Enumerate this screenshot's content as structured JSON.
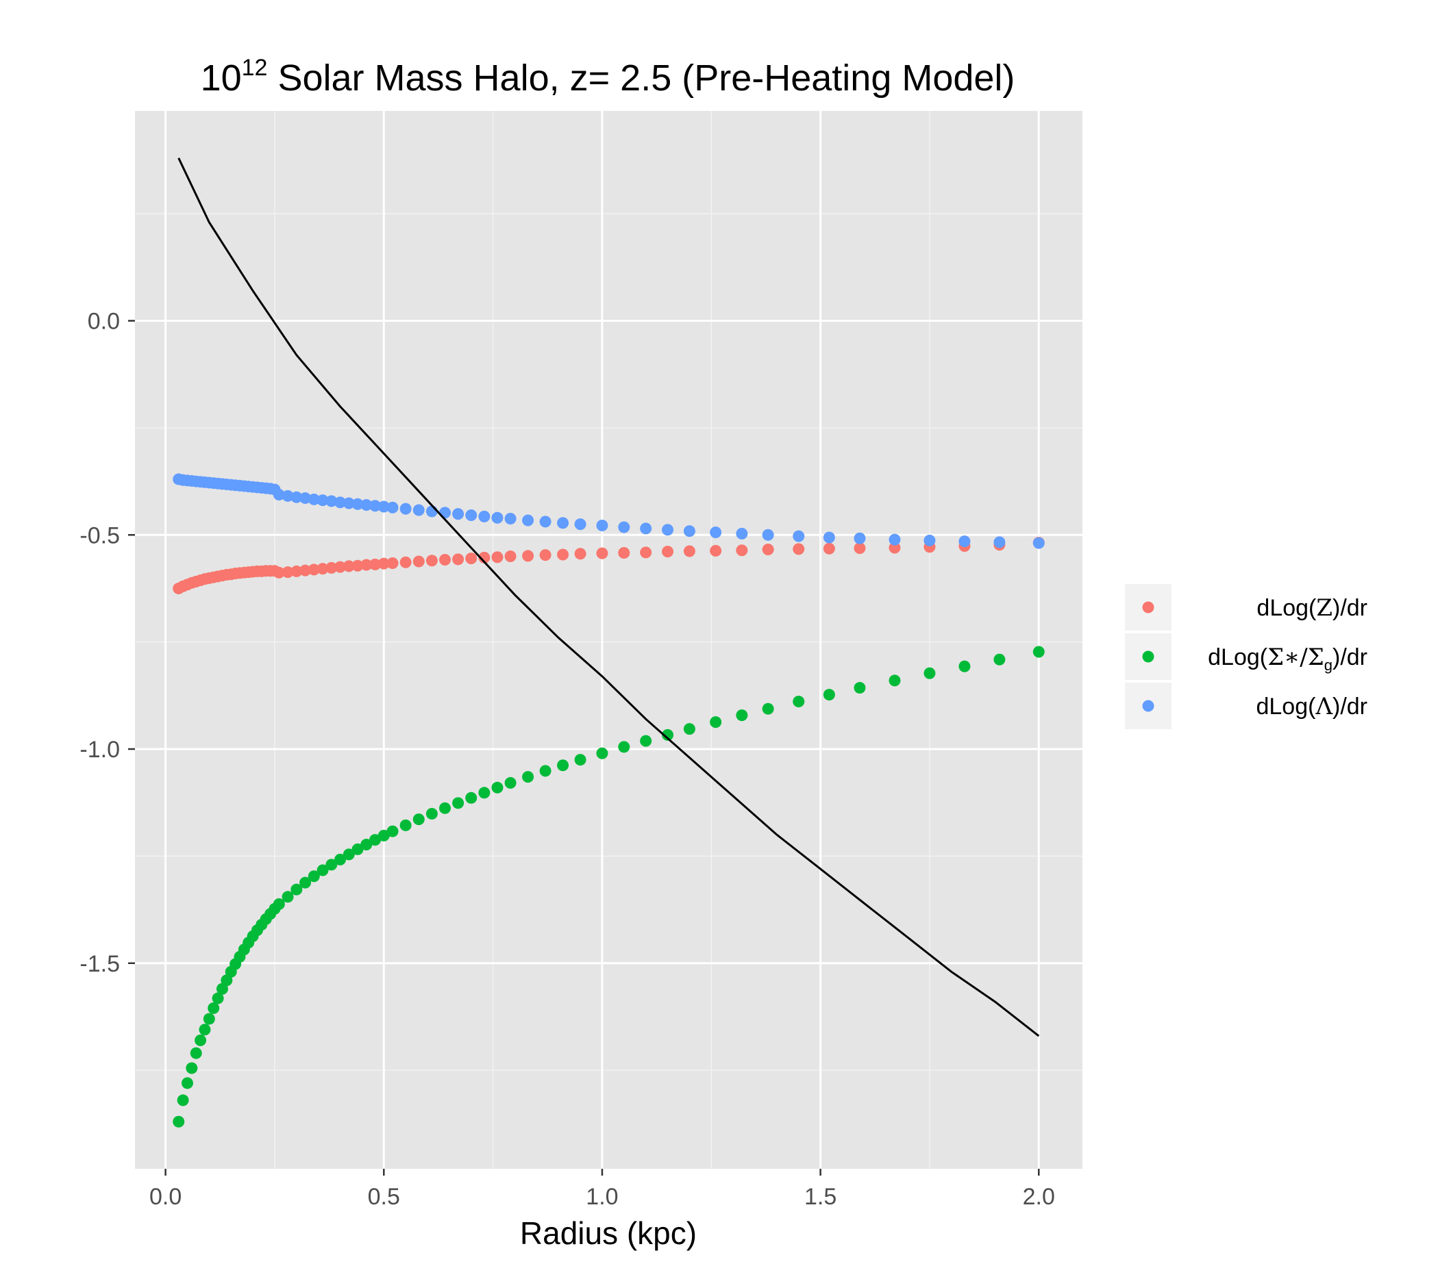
{
  "chart_data": {
    "type": "scatter",
    "title": {
      "base": "10",
      "superscript": "12",
      "rest": " Solar Mass Halo, z= 2.5 (Pre-Heating Model)"
    },
    "xlabel": "Radius (kpc)",
    "ylabel": "",
    "xlim": [
      -0.07,
      2.1
    ],
    "ylim": [
      -1.98,
      0.49
    ],
    "x_ticks": [
      0.0,
      0.5,
      1.0,
      1.5,
      2.0
    ],
    "x_tick_labels": [
      "0.0",
      "0.5",
      "1.0",
      "1.5",
      "2.0"
    ],
    "y_ticks": [
      0.0,
      -0.5,
      -1.0,
      -1.5
    ],
    "y_tick_labels": [
      "0.0",
      "-0.5",
      "-1.0",
      "-1.5"
    ],
    "grid": true,
    "panel_background": "#e5e5e5",
    "legend_position": "right",
    "series": [
      {
        "key": "Z",
        "legend_label": {
          "pre": "dLog(",
          "sym": "Z",
          "post": ")/dr"
        },
        "color": "#f8766d",
        "type": "points",
        "x": [
          0.03,
          0.04,
          0.05,
          0.06,
          0.07,
          0.08,
          0.09,
          0.1,
          0.11,
          0.12,
          0.13,
          0.14,
          0.15,
          0.16,
          0.17,
          0.18,
          0.19,
          0.2,
          0.21,
          0.22,
          0.23,
          0.24,
          0.25,
          0.26,
          0.28,
          0.3,
          0.32,
          0.34,
          0.36,
          0.38,
          0.4,
          0.42,
          0.44,
          0.46,
          0.48,
          0.5,
          0.52,
          0.55,
          0.58,
          0.61,
          0.64,
          0.67,
          0.7,
          0.73,
          0.76,
          0.79,
          0.83,
          0.87,
          0.91,
          0.95,
          1.0,
          1.05,
          1.1,
          1.15,
          1.2,
          1.26,
          1.32,
          1.38,
          1.45,
          1.52,
          1.59,
          1.67,
          1.75,
          1.83,
          1.91,
          2.0
        ],
        "y": [
          -0.625,
          -0.62,
          -0.616,
          -0.612,
          -0.609,
          -0.606,
          -0.603,
          -0.601,
          -0.599,
          -0.597,
          -0.595,
          -0.593,
          -0.592,
          -0.59,
          -0.589,
          -0.588,
          -0.587,
          -0.586,
          -0.585,
          -0.585,
          -0.584,
          -0.584,
          -0.584,
          -0.588,
          -0.587,
          -0.585,
          -0.583,
          -0.581,
          -0.579,
          -0.577,
          -0.575,
          -0.573,
          -0.572,
          -0.57,
          -0.569,
          -0.567,
          -0.566,
          -0.564,
          -0.562,
          -0.56,
          -0.558,
          -0.557,
          -0.555,
          -0.553,
          -0.552,
          -0.55,
          -0.549,
          -0.547,
          -0.546,
          -0.544,
          -0.543,
          -0.542,
          -0.541,
          -0.539,
          -0.538,
          -0.537,
          -0.536,
          -0.534,
          -0.533,
          -0.532,
          -0.531,
          -0.53,
          -0.528,
          -0.526,
          -0.523,
          -0.518
        ]
      },
      {
        "key": "sigma",
        "legend_label": {
          "pre": "dLog(",
          "sym": "Σ∗/Σg",
          "post": ")/dr"
        },
        "color": "#00ba38",
        "type": "points",
        "x": [
          0.03,
          0.04,
          0.05,
          0.06,
          0.07,
          0.08,
          0.09,
          0.1,
          0.11,
          0.12,
          0.13,
          0.14,
          0.15,
          0.16,
          0.17,
          0.18,
          0.19,
          0.2,
          0.21,
          0.22,
          0.23,
          0.24,
          0.25,
          0.26,
          0.28,
          0.3,
          0.32,
          0.34,
          0.36,
          0.38,
          0.4,
          0.42,
          0.44,
          0.46,
          0.48,
          0.5,
          0.52,
          0.55,
          0.58,
          0.61,
          0.64,
          0.67,
          0.7,
          0.73,
          0.76,
          0.79,
          0.83,
          0.87,
          0.91,
          0.95,
          1.0,
          1.05,
          1.1,
          1.15,
          1.2,
          1.26,
          1.32,
          1.38,
          1.45,
          1.52,
          1.59,
          1.67,
          1.75,
          1.83,
          1.91,
          2.0
        ],
        "y": [
          -1.87,
          -1.82,
          -1.78,
          -1.745,
          -1.71,
          -1.68,
          -1.655,
          -1.63,
          -1.605,
          -1.582,
          -1.56,
          -1.54,
          -1.52,
          -1.502,
          -1.485,
          -1.468,
          -1.452,
          -1.437,
          -1.423,
          -1.41,
          -1.397,
          -1.385,
          -1.373,
          -1.362,
          -1.345,
          -1.328,
          -1.312,
          -1.297,
          -1.283,
          -1.27,
          -1.258,
          -1.246,
          -1.234,
          -1.223,
          -1.212,
          -1.202,
          -1.192,
          -1.178,
          -1.164,
          -1.151,
          -1.138,
          -1.126,
          -1.114,
          -1.102,
          -1.09,
          -1.079,
          -1.065,
          -1.051,
          -1.038,
          -1.025,
          -1.01,
          -0.995,
          -0.981,
          -0.967,
          -0.953,
          -0.937,
          -0.921,
          -0.906,
          -0.889,
          -0.873,
          -0.857,
          -0.84,
          -0.823,
          -0.807,
          -0.791,
          -0.773
        ]
      },
      {
        "key": "Lambda",
        "legend_label": {
          "pre": "dLog(",
          "sym": "Λ",
          "post": ")/dr"
        },
        "color": "#619cff",
        "type": "points",
        "x": [
          0.03,
          0.04,
          0.05,
          0.06,
          0.07,
          0.08,
          0.09,
          0.1,
          0.11,
          0.12,
          0.13,
          0.14,
          0.15,
          0.16,
          0.17,
          0.18,
          0.19,
          0.2,
          0.21,
          0.22,
          0.23,
          0.24,
          0.25,
          0.26,
          0.28,
          0.3,
          0.32,
          0.34,
          0.36,
          0.38,
          0.4,
          0.42,
          0.44,
          0.46,
          0.48,
          0.5,
          0.52,
          0.55,
          0.58,
          0.61,
          0.64,
          0.67,
          0.7,
          0.73,
          0.76,
          0.79,
          0.83,
          0.87,
          0.91,
          0.95,
          1.0,
          1.05,
          1.1,
          1.15,
          1.2,
          1.26,
          1.32,
          1.38,
          1.45,
          1.52,
          1.59,
          1.67,
          1.75,
          1.83,
          1.91,
          2.0
        ],
        "y": [
          -0.37,
          -0.372,
          -0.373,
          -0.374,
          -0.375,
          -0.376,
          -0.377,
          -0.378,
          -0.379,
          -0.38,
          -0.381,
          -0.382,
          -0.383,
          -0.384,
          -0.385,
          -0.386,
          -0.387,
          -0.388,
          -0.389,
          -0.39,
          -0.391,
          -0.392,
          -0.394,
          -0.406,
          -0.409,
          -0.412,
          -0.414,
          -0.417,
          -0.419,
          -0.421,
          -0.424,
          -0.426,
          -0.428,
          -0.43,
          -0.432,
          -0.434,
          -0.436,
          -0.439,
          -0.442,
          -0.445,
          -0.448,
          -0.451,
          -0.454,
          -0.457,
          -0.46,
          -0.462,
          -0.466,
          -0.469,
          -0.472,
          -0.475,
          -0.478,
          -0.482,
          -0.485,
          -0.488,
          -0.491,
          -0.494,
          -0.497,
          -0.5,
          -0.503,
          -0.506,
          -0.508,
          -0.511,
          -0.513,
          -0.515,
          -0.517,
          -0.519
        ]
      },
      {
        "key": "line",
        "color": "#000000",
        "type": "line",
        "x": [
          0.03,
          0.1,
          0.2,
          0.3,
          0.4,
          0.5,
          0.6,
          0.7,
          0.8,
          0.9,
          1.0,
          1.1,
          1.2,
          1.3,
          1.4,
          1.5,
          1.6,
          1.7,
          1.8,
          1.9,
          2.0
        ],
        "y": [
          0.38,
          0.23,
          0.07,
          -0.08,
          -0.2,
          -0.31,
          -0.42,
          -0.53,
          -0.64,
          -0.74,
          -0.83,
          -0.93,
          -1.02,
          -1.11,
          -1.2,
          -1.28,
          -1.36,
          -1.44,
          -1.52,
          -1.59,
          -1.67
        ]
      }
    ]
  }
}
